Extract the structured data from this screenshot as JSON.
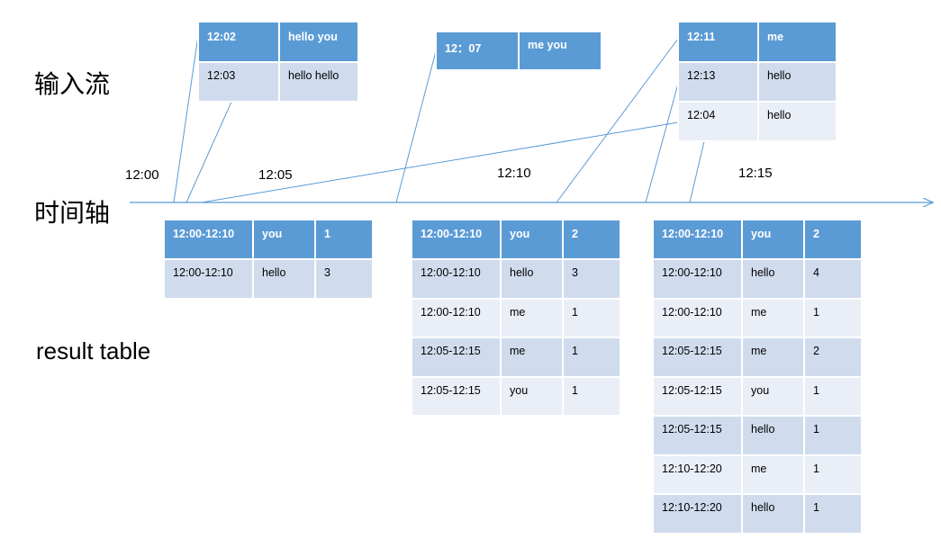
{
  "labels": {
    "input_stream": "输入流",
    "timeline": "时间轴",
    "result_table": "result table"
  },
  "ticks": [
    "12:00",
    "12:05",
    "12:10",
    "12:15"
  ],
  "input_tables": [
    {
      "rows": [
        {
          "time": "12:02",
          "words": "hello you"
        },
        {
          "time": "12:03",
          "words": "hello hello"
        }
      ]
    },
    {
      "rows": [
        {
          "time": "12：07",
          "words": "me you"
        }
      ]
    },
    {
      "rows": [
        {
          "time": "12:11",
          "words": "me"
        },
        {
          "time": "12:13",
          "words": "hello"
        },
        {
          "time": "12:04",
          "words": "hello",
          "late": true
        }
      ]
    }
  ],
  "result_tables": [
    {
      "rows": [
        {
          "window": "12:00-12:10",
          "word": "you",
          "count": "1"
        },
        {
          "window": "12:00-12:10",
          "word": "hello",
          "count": "3"
        }
      ]
    },
    {
      "rows": [
        {
          "window": "12:00-12:10",
          "word": "you",
          "count": "2"
        },
        {
          "window": "12:00-12:10",
          "word": "hello",
          "count": "3"
        },
        {
          "window": "12:00-12:10",
          "word": "me",
          "count": "1"
        },
        {
          "window": "12:05-12:15",
          "word": "me",
          "count": "1"
        },
        {
          "window": "12:05-12:15",
          "word": "you",
          "count": "1"
        }
      ]
    },
    {
      "rows": [
        {
          "window": "12:00-12:10",
          "word": "you",
          "count": "2"
        },
        {
          "window": "12:00-12:10",
          "word": "hello",
          "count": "4",
          "updated": true
        },
        {
          "window": "12:00-12:10",
          "word": "me",
          "count": "1"
        },
        {
          "window": "12:05-12:15",
          "word": "me",
          "count": "2"
        },
        {
          "window": "12:05-12:15",
          "word": "you",
          "count": "1"
        },
        {
          "window": "12:05-12:15",
          "word": "hello",
          "count": "1"
        },
        {
          "window": "12:10-12:20",
          "word": "me",
          "count": "1"
        },
        {
          "window": "12:10-12:20",
          "word": "hello",
          "count": "1"
        }
      ]
    }
  ],
  "colors": {
    "header": "#5b9bd5",
    "row_odd": "#d0dcee",
    "row_even": "#e9eef7",
    "connector": "#5b9bd5",
    "highlight": "#ff0000"
  }
}
